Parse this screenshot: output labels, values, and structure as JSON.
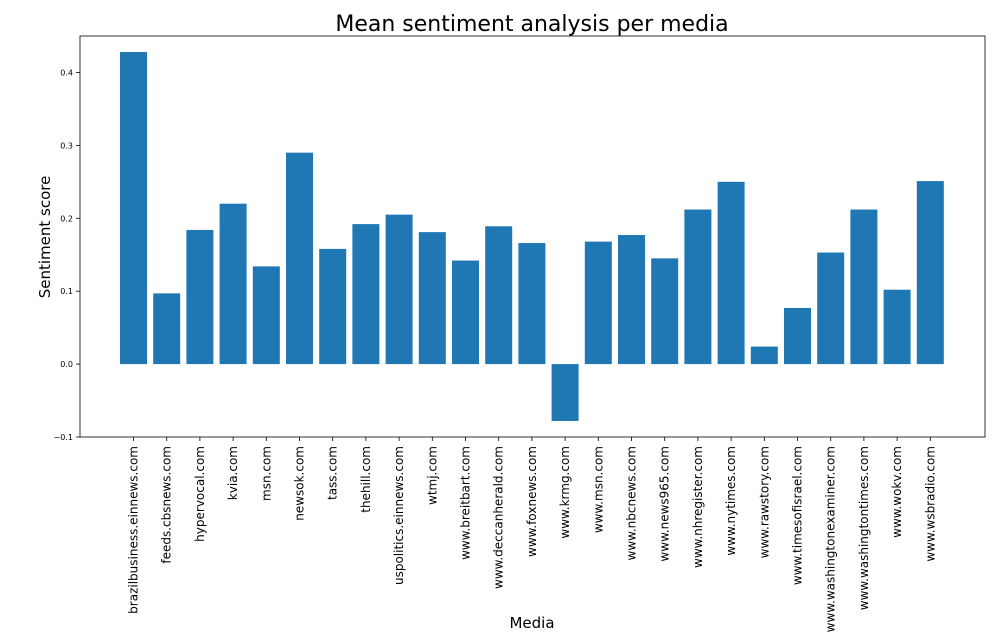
{
  "chart_data": {
    "type": "bar",
    "title": "Mean sentiment analysis per media",
    "xlabel": "Media",
    "ylabel": "Sentiment score",
    "categories": [
      "brazilbusiness.einnews.com",
      "feeds.cbsnews.com",
      "hypervocal.com",
      "kvia.com",
      "msn.com",
      "newsok.com",
      "tass.com",
      "thehill.com",
      "uspolitics.einnews.com",
      "wtmj.com",
      "www.breitbart.com",
      "www.deccanherald.com",
      "www.foxnews.com",
      "www.krmg.com",
      "www.msn.com",
      "www.nbcnews.com",
      "www.news965.com",
      "www.nhregister.com",
      "www.nytimes.com",
      "www.rawstory.com",
      "www.timesofisrael.com",
      "www.washingtonexaminer.com",
      "www.washingtontimes.com",
      "www.wokv.com",
      "www.wsbradio.com"
    ],
    "values": [
      0.428,
      0.097,
      0.184,
      0.22,
      0.134,
      0.29,
      0.158,
      0.192,
      0.205,
      0.181,
      0.142,
      0.189,
      0.166,
      -0.078,
      0.168,
      0.177,
      0.145,
      0.212,
      0.25,
      0.024,
      0.077,
      0.153,
      0.212,
      0.102,
      0.251
    ],
    "ylim": [
      -0.1,
      0.45
    ],
    "yticks": [
      -0.1,
      0.0,
      0.1,
      0.2,
      0.3,
      0.4
    ],
    "ytick_labels": [
      "−0.1",
      "0.0",
      "0.1",
      "0.2",
      "0.3",
      "0.4"
    ],
    "bar_color": "#1f77b4",
    "grid": false
  }
}
